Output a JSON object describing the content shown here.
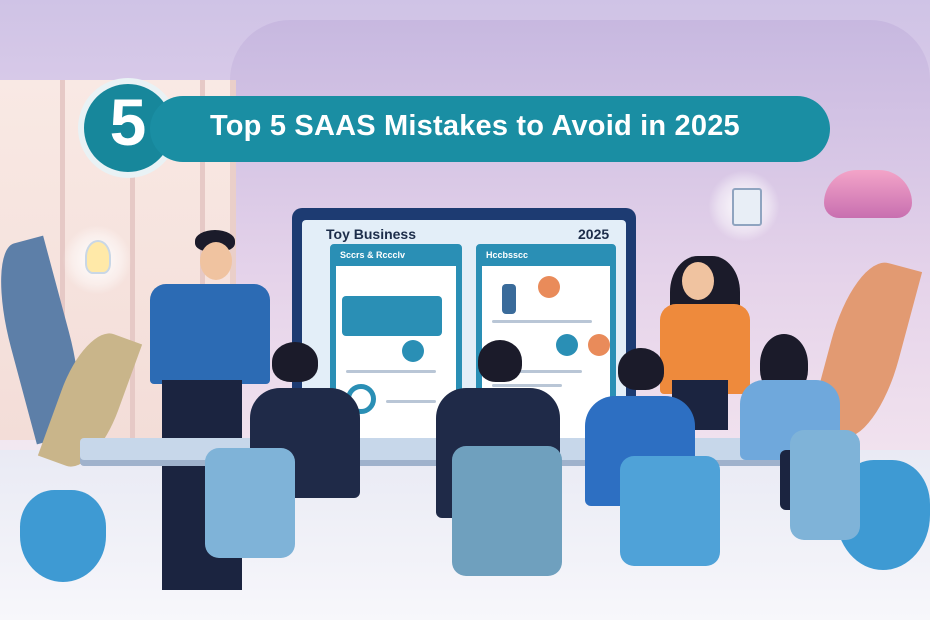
{
  "banner": {
    "badge_number": "5",
    "title": "Top 5 SAAS Mistakes to Avoid in 2025",
    "color": "#1a8ea3"
  },
  "presentation_screen": {
    "title": "Toy Business",
    "year": "2025",
    "left_panel_label": "Sccrs & Rccclv",
    "right_panel_label": "Hccbsscc"
  },
  "icons": [
    "lightbulb-icon",
    "document-icon",
    "pendant-lamp-icon"
  ]
}
